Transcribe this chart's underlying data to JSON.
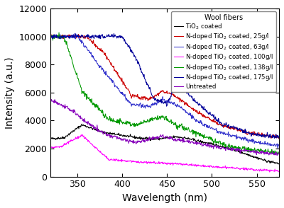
{
  "title": "",
  "xlabel": "Wavelength (nm)",
  "ylabel": "Intensity (a.u.)",
  "xlim": [
    320,
    575
  ],
  "ylim": [
    0,
    12000
  ],
  "yticks": [
    0,
    2000,
    4000,
    6000,
    8000,
    10000,
    12000
  ],
  "xticks": [
    350,
    400,
    450,
    500,
    550
  ],
  "legend_title": "Wool fibers",
  "series": [
    {
      "label": "TiO$_2$ coated",
      "color": "#000000",
      "key": "black"
    },
    {
      "label": "N-doped TiO$_2$ coated, 25g/l",
      "color": "#cc0000",
      "key": "red"
    },
    {
      "label": "N-doped TiO$_2$ coated, 63g/l",
      "color": "#3333cc",
      "key": "blue_light"
    },
    {
      "label": "N-doped TiO$_2$ coated, 100g/l",
      "color": "#ff00ff",
      "key": "magenta"
    },
    {
      "label": "N-doped TiO$_2$ coated, 138g/l",
      "color": "#009900",
      "key": "green"
    },
    {
      "label": "N-doped TiO$_2$ coated, 175g/l",
      "color": "#000099",
      "key": "navy"
    },
    {
      "label": "Untreated",
      "color": "#8800bb",
      "key": "purple"
    }
  ],
  "noise_seed": 42
}
